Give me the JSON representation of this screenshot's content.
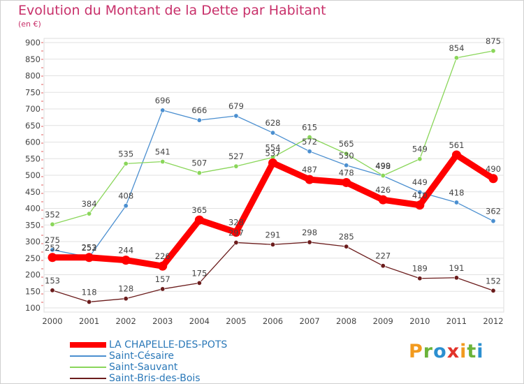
{
  "chart_data": {
    "type": "line",
    "title": "Evolution du Montant de la Dette par Habitant",
    "subtitle": "(en €)",
    "x": [
      "2000",
      "2001",
      "2002",
      "2003",
      "2004",
      "2005",
      "2006",
      "2007",
      "2008",
      "2009",
      "2010",
      "2011",
      "2012"
    ],
    "ylim": [
      100,
      900
    ],
    "yticks": [
      100,
      150,
      200,
      250,
      300,
      350,
      400,
      450,
      500,
      550,
      600,
      650,
      700,
      750,
      800,
      850,
      900
    ],
    "grid": "horizontal",
    "legend_position": "bottom-left",
    "series": [
      {
        "name": "LA CHAPELLE-DES-POTS",
        "color": "#ff0000",
        "values": [
          252,
          252,
          244,
          226,
          365,
          328,
          537,
          487,
          478,
          426,
          410,
          561,
          490
        ]
      },
      {
        "name": "Saint-Césaire",
        "color": "#4b8fd0",
        "values": [
          275,
          253,
          408,
          696,
          666,
          679,
          628,
          572,
          530,
          498,
          449,
          418,
          362
        ]
      },
      {
        "name": "Saint-Sauvant",
        "color": "#8ad65a",
        "values": [
          352,
          384,
          535,
          541,
          507,
          527,
          554,
          615,
          565,
          499,
          549,
          854,
          875
        ]
      },
      {
        "name": "Saint-Bris-des-Bois",
        "color": "#6b1c1c",
        "values": [
          153,
          118,
          128,
          157,
          175,
          297,
          291,
          298,
          285,
          227,
          189,
          191,
          152
        ]
      }
    ]
  },
  "logo": {
    "text": "Proxiti",
    "colors": [
      "#f29a1e",
      "#6bb33a",
      "#2b8fd0",
      "#e2332a",
      "#f29a1e",
      "#6bb33a",
      "#2b8fd0"
    ]
  }
}
